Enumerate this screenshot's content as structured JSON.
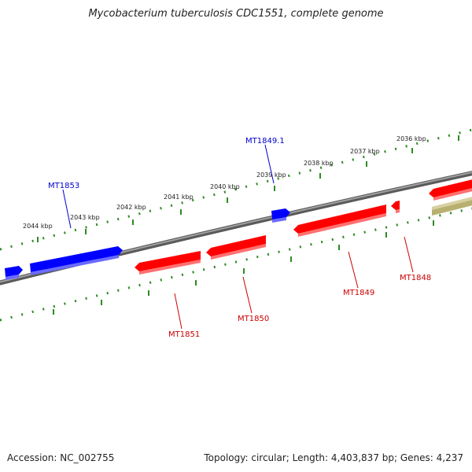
{
  "title": "Mycobacterium tuberculosis CDC1551, complete genome",
  "footer": {
    "accession": "Accession: NC_002755",
    "summary": "Topology: circular; Length: 4,403,837 bp; Genes: 4,237"
  },
  "colors": {
    "forward_gene": "#0000ff",
    "reverse_gene": "#ff0000",
    "other_feature": "#b8b070",
    "backbone": "#808080",
    "ticks": "#2e8b22"
  },
  "scale_labels": [
    "2036 kbp",
    "2037 kbp",
    "2038 kbp",
    "2039 kbp",
    "2040 kbp",
    "2041 kbp",
    "2042 kbp",
    "2043 kbp",
    "2044 kbp"
  ],
  "gene_labels": {
    "mt1849_1": "MT1849.1",
    "mt1853": "MT1853",
    "mt1851": "MT1851",
    "mt1850": "MT1850",
    "mt1849": "MT1849",
    "mt1848": "MT1848"
  }
}
